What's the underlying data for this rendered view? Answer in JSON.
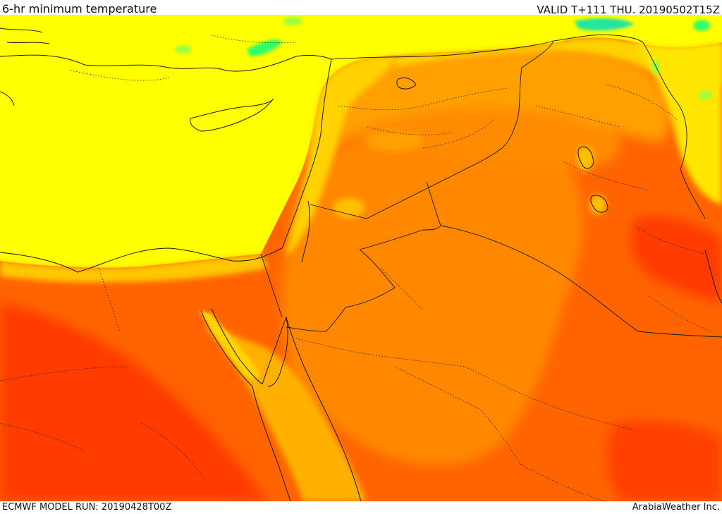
{
  "header": {
    "title": "6-hr minimum temperature",
    "valid_time": "VALID T+111 THU. 20190502T15Z"
  },
  "footer": {
    "model_run": "ECMWF MODEL RUN: 20190428T00Z",
    "credit": "ArabiaWeather Inc."
  },
  "map": {
    "field": "6-hr minimum temperature",
    "palette": {
      "yellow": "#ffff00",
      "light_orange": "#ffd400",
      "amber": "#ffb400",
      "orange": "#ff8c00",
      "dark_orange": "#ff6400",
      "red_orange": "#ff4400",
      "red": "#ff2a00",
      "light_green": "#9cff3c",
      "green": "#33ff66",
      "teal": "#22e6a0",
      "coast_line": "#1a1a1a"
    }
  }
}
